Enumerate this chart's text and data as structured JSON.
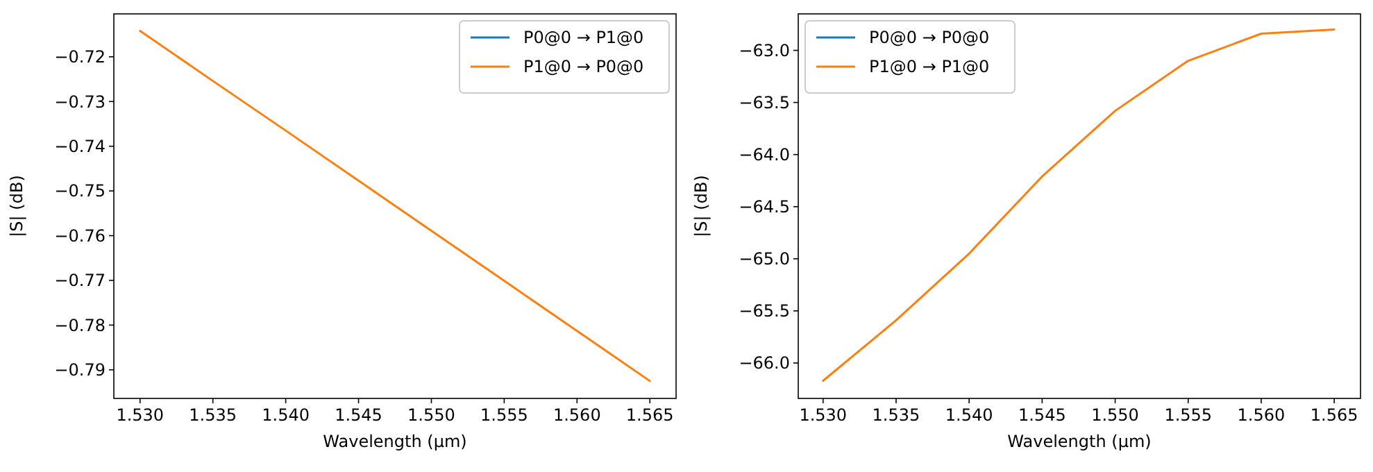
{
  "chart_data": [
    {
      "type": "line",
      "xlabel": "Wavelength (µm)",
      "ylabel": "|S| (dB)",
      "x": [
        1.53,
        1.535,
        1.54,
        1.545,
        1.55,
        1.555,
        1.56,
        1.565
      ],
      "series": [
        {
          "name": "P0@0 → P1@0",
          "color": "#1f77b4",
          "values": [
            null,
            null,
            null,
            null,
            null,
            null,
            null,
            null
          ]
        },
        {
          "name": "P1@0 → P0@0",
          "color": "#ff7f0e",
          "values": [
            -0.7142,
            -0.7254,
            -0.7365,
            -0.7477,
            -0.7589,
            -0.7701,
            -0.7813,
            -0.7925
          ]
        }
      ],
      "xlim": [
        1.5282,
        1.5668
      ],
      "xticks": [
        {
          "value": 1.53,
          "label": "1.530"
        },
        {
          "value": 1.535,
          "label": "1.535"
        },
        {
          "value": 1.54,
          "label": "1.540"
        },
        {
          "value": 1.545,
          "label": "1.545"
        },
        {
          "value": 1.55,
          "label": "1.550"
        },
        {
          "value": 1.555,
          "label": "1.555"
        },
        {
          "value": 1.56,
          "label": "1.560"
        },
        {
          "value": 1.565,
          "label": "1.565"
        }
      ],
      "ylim": [
        -0.7964,
        -0.7104
      ],
      "yticks": [
        {
          "value": -0.72,
          "label": "−0.72"
        },
        {
          "value": -0.73,
          "label": "−0.73"
        },
        {
          "value": -0.74,
          "label": "−0.74"
        },
        {
          "value": -0.75,
          "label": "−0.75"
        },
        {
          "value": -0.76,
          "label": "−0.76"
        },
        {
          "value": -0.77,
          "label": "−0.77"
        },
        {
          "value": -0.78,
          "label": "−0.78"
        },
        {
          "value": -0.79,
          "label": "−0.79"
        }
      ],
      "legend": "top right",
      "grid": false
    },
    {
      "type": "line",
      "xlabel": "Wavelength (µm)",
      "ylabel": "|S| (dB)",
      "x": [
        1.53,
        1.535,
        1.54,
        1.545,
        1.55,
        1.555,
        1.56,
        1.565
      ],
      "series": [
        {
          "name": "P0@0 → P0@0",
          "color": "#1f77b4",
          "values": [
            null,
            null,
            null,
            null,
            null,
            null,
            null,
            null
          ]
        },
        {
          "name": "P1@0 → P1@0",
          "color": "#ff7f0e",
          "values": [
            -66.17,
            -65.59,
            -64.95,
            -64.21,
            -63.58,
            -63.1,
            -62.84,
            -62.8
          ]
        }
      ],
      "xlim": [
        1.5283,
        1.5668
      ],
      "xticks": [
        {
          "value": 1.53,
          "label": "1.530"
        },
        {
          "value": 1.535,
          "label": "1.535"
        },
        {
          "value": 1.54,
          "label": "1.540"
        },
        {
          "value": 1.545,
          "label": "1.545"
        },
        {
          "value": 1.55,
          "label": "1.550"
        },
        {
          "value": 1.555,
          "label": "1.555"
        },
        {
          "value": 1.56,
          "label": "1.560"
        },
        {
          "value": 1.565,
          "label": "1.565"
        }
      ],
      "ylim": [
        -66.34,
        -62.65
      ],
      "yticks": [
        {
          "value": -63.0,
          "label": "−63.0"
        },
        {
          "value": -63.5,
          "label": "−63.5"
        },
        {
          "value": -64.0,
          "label": "−64.0"
        },
        {
          "value": -64.5,
          "label": "−64.5"
        },
        {
          "value": -65.0,
          "label": "−65.0"
        },
        {
          "value": -65.5,
          "label": "−65.5"
        },
        {
          "value": -66.0,
          "label": "−66.0"
        }
      ],
      "legend": "top left",
      "grid": false
    }
  ]
}
